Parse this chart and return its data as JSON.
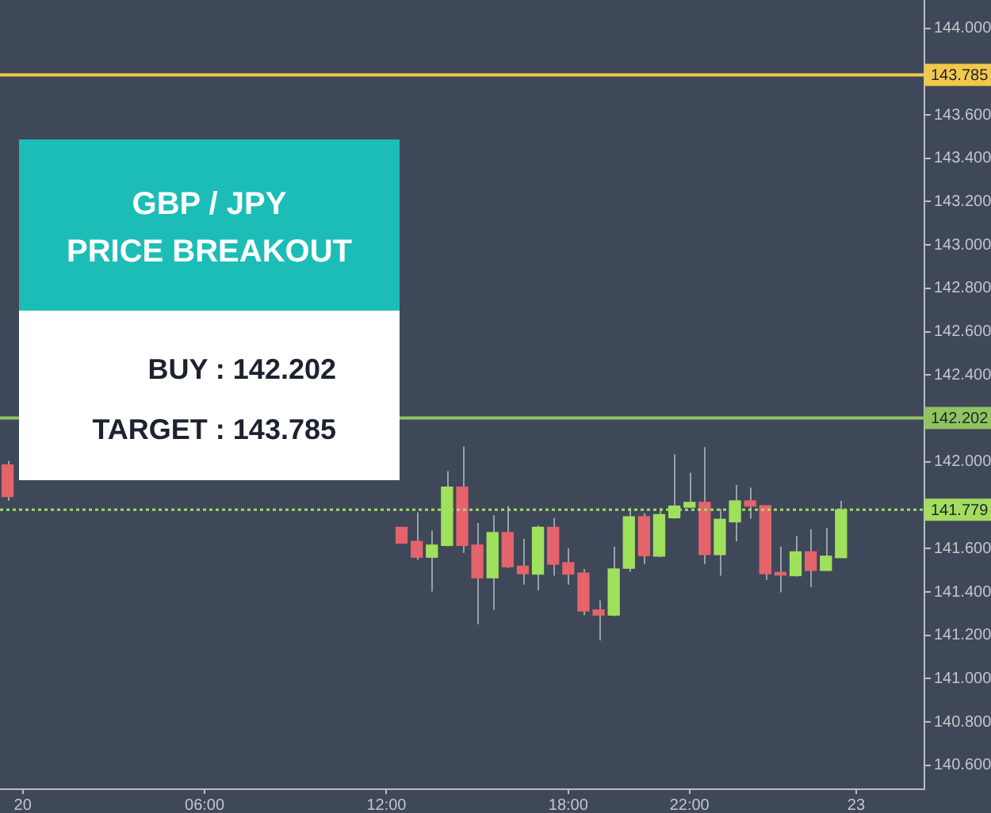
{
  "chart_data": {
    "type": "candlestick",
    "title": "GBP / JPY",
    "subtitle": "PRICE BREAKOUT",
    "annotations": [
      "BUY : 142.202",
      "TARGET : 143.785"
    ],
    "categories": [
      null,
      "20",
      null,
      null,
      null,
      null,
      null,
      null,
      null,
      null,
      null,
      null,
      null,
      "06:00",
      null,
      null,
      null,
      null,
      null,
      null,
      null,
      null,
      null,
      null,
      null,
      "12:00",
      null,
      null,
      null,
      null,
      null,
      null,
      null,
      null,
      null,
      null,
      null,
      "18:00",
      null,
      null,
      null,
      null,
      null,
      null,
      null,
      "22:00",
      null,
      null,
      null,
      null,
      null,
      null,
      null,
      null,
      null,
      null,
      "23",
      null,
      null,
      null,
      null
    ],
    "ohlc": [
      [
        141.986,
        142.005,
        141.82,
        141.84
      ],
      null,
      null,
      null,
      null,
      null,
      null,
      null,
      null,
      null,
      null,
      null,
      null,
      null,
      null,
      null,
      null,
      null,
      null,
      null,
      null,
      null,
      null,
      null,
      null,
      null,
      [
        141.698,
        141.698,
        141.625,
        141.625
      ],
      [
        141.633,
        141.767,
        141.548,
        141.56
      ],
      [
        141.56,
        141.682,
        141.402,
        141.616
      ],
      [
        141.614,
        141.957,
        141.609,
        141.884
      ],
      [
        141.884,
        142.071,
        141.58,
        141.614
      ],
      [
        141.616,
        141.718,
        141.251,
        141.465
      ],
      [
        141.465,
        141.754,
        141.317,
        141.674
      ],
      [
        141.674,
        141.796,
        141.511,
        141.516
      ],
      [
        141.519,
        141.645,
        141.434,
        141.484
      ],
      [
        141.482,
        141.706,
        141.407,
        141.698
      ],
      [
        141.698,
        141.742,
        141.475,
        141.528
      ],
      [
        141.535,
        141.601,
        141.434,
        141.482
      ],
      [
        141.487,
        141.506,
        141.293,
        141.312
      ],
      [
        141.317,
        141.361,
        141.176,
        141.293
      ],
      [
        141.293,
        141.609,
        141.288,
        141.506
      ],
      [
        141.509,
        141.788,
        141.492,
        141.747
      ],
      [
        141.747,
        141.764,
        141.528,
        141.567
      ],
      [
        141.565,
        141.788,
        141.56,
        141.757
      ],
      [
        141.742,
        142.034,
        141.738,
        141.796
      ],
      [
        141.791,
        141.95,
        141.788,
        141.813
      ],
      [
        141.813,
        142.068,
        141.528,
        141.572
      ],
      [
        141.572,
        141.784,
        141.475,
        141.735
      ],
      [
        141.723,
        141.893,
        141.633,
        141.82
      ],
      [
        141.82,
        141.881,
        141.738,
        141.796
      ],
      [
        141.798,
        141.798,
        141.455,
        141.484
      ],
      [
        141.49,
        141.609,
        141.398,
        141.478
      ],
      [
        141.475,
        141.658,
        141.47,
        141.585
      ],
      [
        141.585,
        141.689,
        141.422,
        141.499
      ],
      [
        141.499,
        141.694,
        141.499,
        141.565
      ],
      [
        141.558,
        141.82,
        141.558,
        141.779
      ],
      null,
      null,
      null,
      null,
      null
    ],
    "colors": [
      "#e5636a",
      null,
      null,
      null,
      null,
      null,
      null,
      null,
      null,
      null,
      null,
      null,
      null,
      null,
      null,
      null,
      null,
      null,
      null,
      null,
      null,
      null,
      null,
      null,
      null,
      null,
      "#e5636a",
      "#e5636a",
      "#9fe15c",
      "#9fe15c",
      "#e5636a",
      "#e5636a",
      "#9fe15c",
      "#e5636a",
      "#e5636a",
      "#9fe15c",
      "#e5636a",
      "#e5636a",
      "#e5636a",
      "#e5636a",
      "#9fe15c",
      "#9fe15c",
      "#e5636a",
      "#9fe15c",
      "#9fe15c",
      "#9fe15c",
      "#e5636a",
      "#9fe15c",
      "#9fe15c",
      "#e5636a",
      "#e5636a",
      "#e5636a",
      "#9fe15c",
      "#e5636a",
      "#9fe15c",
      "#9fe15c",
      null,
      null,
      null,
      null,
      null
    ],
    "ylim": [
      140.49,
      144.13
    ],
    "yticks": [
      {
        "value": 144,
        "label": "144.000"
      },
      {
        "value": 143.6,
        "label": "143.600"
      },
      {
        "value": 143.4,
        "label": "143.400"
      },
      {
        "value": 143.2,
        "label": "143.200"
      },
      {
        "value": 143,
        "label": "143.000"
      },
      {
        "value": 142.8,
        "label": "142.800"
      },
      {
        "value": 142.6,
        "label": "142.600"
      },
      {
        "value": 142.4,
        "label": "142.400"
      },
      {
        "value": 142,
        "label": "142.000"
      },
      {
        "value": 141.6,
        "label": "141.600"
      },
      {
        "value": 141.4,
        "label": "141.400"
      },
      {
        "value": 141.2,
        "label": "141.200"
      },
      {
        "value": 141,
        "label": "141.000"
      },
      {
        "value": 140.8,
        "label": "140.800"
      },
      {
        "value": 140.6,
        "label": "140.600"
      }
    ],
    "ref_lines": [
      {
        "axis": "y",
        "value": 143.785,
        "label": "143.785",
        "color": "#f2c84b",
        "line_style": "solid"
      },
      {
        "axis": "y",
        "value": 142.202,
        "label": "142.202",
        "color": "#8fc461",
        "line_style": "solid"
      },
      {
        "axis": "y",
        "value": 141.779,
        "label": "141.779",
        "color": "#a3dc5e",
        "line_style": "dotted"
      }
    ]
  }
}
